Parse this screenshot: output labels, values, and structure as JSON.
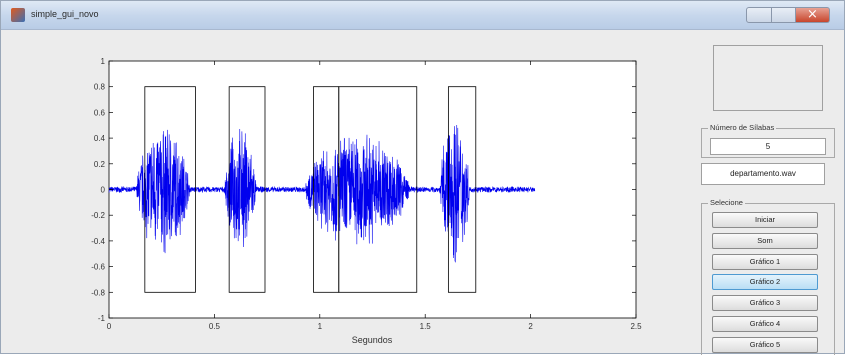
{
  "window": {
    "title": "simple_gui_novo"
  },
  "chart_data": {
    "type": "line",
    "xlabel": "Segundos",
    "ylabel": "",
    "xlim": [
      0,
      2.5
    ],
    "ylim": [
      -1,
      1
    ],
    "x_ticks": [
      "0",
      "0.5",
      "1",
      "1.5",
      "2",
      "2.5"
    ],
    "y_ticks": [
      "1",
      "0.8",
      "0.6",
      "0.4",
      "0.2",
      "0",
      "-0.2",
      "-0.4",
      "-0.6",
      "-0.8",
      "-1"
    ],
    "signal_color": "#0000ee",
    "signal_end": 2.02,
    "bursts": [
      {
        "start": 0.13,
        "end": 0.42,
        "peak": 0.55
      },
      {
        "start": 0.55,
        "end": 0.72,
        "peak": 0.52
      },
      {
        "start": 0.93,
        "end": 1.5,
        "peak": 0.48
      },
      {
        "start": 1.57,
        "end": 1.73,
        "peak": 0.63
      }
    ],
    "segments": [
      {
        "x_start": 0.17,
        "x_end": 0.41,
        "y_top": 0.8,
        "y_bottom": -0.8
      },
      {
        "x_start": 0.57,
        "x_end": 0.74,
        "y_top": 0.8,
        "y_bottom": -0.8
      },
      {
        "x_start": 0.97,
        "x_end": 1.09,
        "y_top": 0.8,
        "y_bottom": -0.8
      },
      {
        "x_start": 1.09,
        "x_end": 1.46,
        "y_top": 0.8,
        "y_bottom": -0.8
      },
      {
        "x_start": 1.61,
        "x_end": 1.74,
        "y_top": 0.8,
        "y_bottom": -0.8
      }
    ]
  },
  "panel": {
    "syllables_group_title": "Número de Sílabas",
    "syllables_count": "5",
    "file_name": "departamento.wav",
    "select_group_title": "Selecione",
    "buttons": [
      "Iniciar",
      "Som",
      "Gráfico 1",
      "Gráfico 2",
      "Gráfico 3",
      "Gráfico 4",
      "Gráfico 5"
    ],
    "active_button": "Gráfico 2"
  }
}
